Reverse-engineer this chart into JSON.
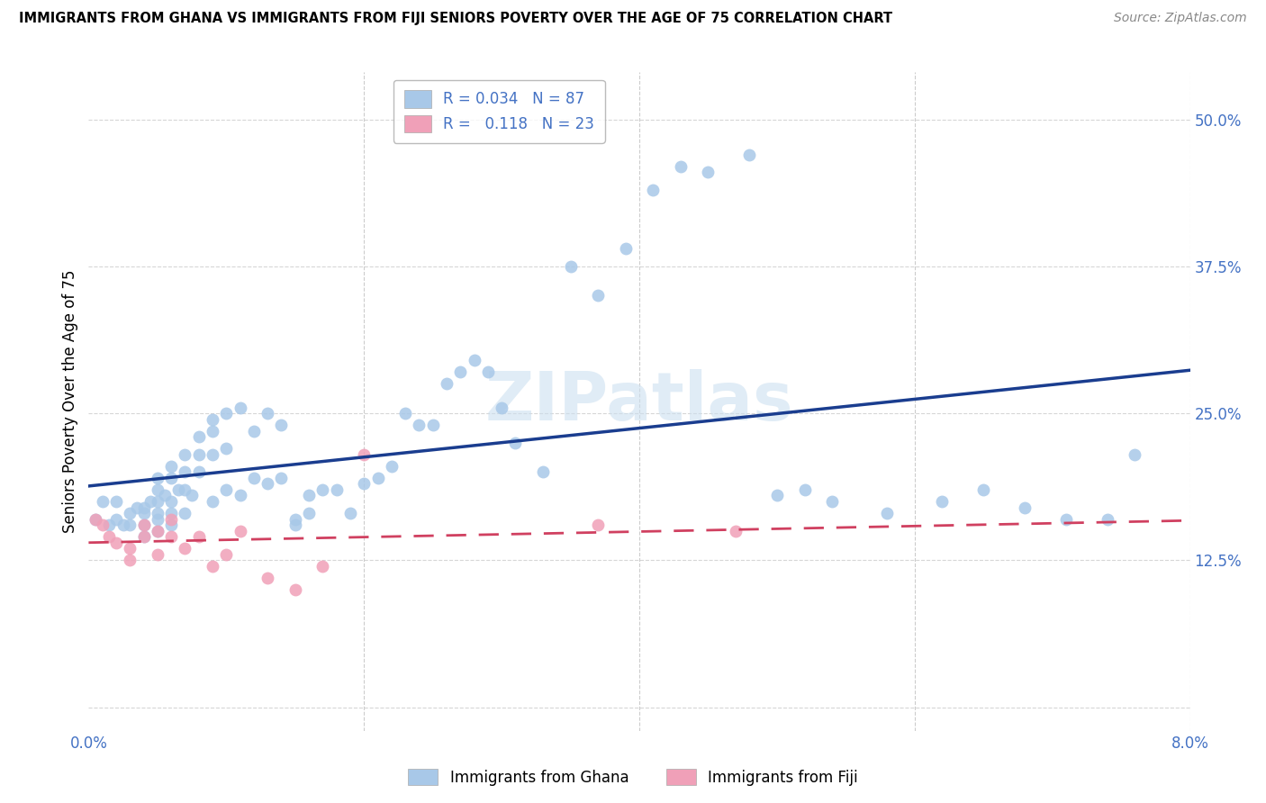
{
  "title": "IMMIGRANTS FROM GHANA VS IMMIGRANTS FROM FIJI SENIORS POVERTY OVER THE AGE OF 75 CORRELATION CHART",
  "source": "Source: ZipAtlas.com",
  "ylabel": "Seniors Poverty Over the Age of 75",
  "xlim": [
    0.0,
    0.08
  ],
  "ylim": [
    -0.02,
    0.54
  ],
  "yticks": [
    0.0,
    0.125,
    0.25,
    0.375,
    0.5
  ],
  "ytick_labels": [
    "",
    "12.5%",
    "25.0%",
    "37.5%",
    "50.0%"
  ],
  "xticks": [
    0.0,
    0.02,
    0.04,
    0.06,
    0.08
  ],
  "xtick_labels": [
    "0.0%",
    "",
    "",
    "",
    "8.0%"
  ],
  "ghana_R": 0.034,
  "ghana_N": 87,
  "fiji_R": 0.118,
  "fiji_N": 23,
  "ghana_color": "#a8c8e8",
  "fiji_color": "#f0a0b8",
  "ghana_line_color": "#1a3d8f",
  "fiji_line_color": "#d04060",
  "watermark": "ZIPatlas",
  "ghana_x": [
    0.0005,
    0.001,
    0.0015,
    0.002,
    0.002,
    0.0025,
    0.003,
    0.003,
    0.0035,
    0.004,
    0.004,
    0.004,
    0.004,
    0.0045,
    0.005,
    0.005,
    0.005,
    0.005,
    0.005,
    0.005,
    0.0055,
    0.006,
    0.006,
    0.006,
    0.006,
    0.006,
    0.0065,
    0.007,
    0.007,
    0.007,
    0.007,
    0.0075,
    0.008,
    0.008,
    0.008,
    0.009,
    0.009,
    0.009,
    0.009,
    0.01,
    0.01,
    0.01,
    0.011,
    0.011,
    0.012,
    0.012,
    0.013,
    0.013,
    0.014,
    0.014,
    0.015,
    0.015,
    0.016,
    0.016,
    0.017,
    0.018,
    0.019,
    0.02,
    0.021,
    0.022,
    0.023,
    0.024,
    0.025,
    0.026,
    0.027,
    0.028,
    0.029,
    0.03,
    0.031,
    0.033,
    0.035,
    0.037,
    0.039,
    0.041,
    0.043,
    0.045,
    0.048,
    0.05,
    0.052,
    0.054,
    0.058,
    0.062,
    0.065,
    0.068,
    0.071,
    0.074,
    0.076
  ],
  "ghana_y": [
    0.16,
    0.175,
    0.155,
    0.175,
    0.16,
    0.155,
    0.165,
    0.155,
    0.17,
    0.165,
    0.17,
    0.155,
    0.145,
    0.175,
    0.175,
    0.195,
    0.185,
    0.165,
    0.16,
    0.15,
    0.18,
    0.205,
    0.195,
    0.175,
    0.165,
    0.155,
    0.185,
    0.215,
    0.2,
    0.185,
    0.165,
    0.18,
    0.23,
    0.215,
    0.2,
    0.245,
    0.235,
    0.215,
    0.175,
    0.25,
    0.22,
    0.185,
    0.255,
    0.18,
    0.235,
    0.195,
    0.25,
    0.19,
    0.24,
    0.195,
    0.16,
    0.155,
    0.18,
    0.165,
    0.185,
    0.185,
    0.165,
    0.19,
    0.195,
    0.205,
    0.25,
    0.24,
    0.24,
    0.275,
    0.285,
    0.295,
    0.285,
    0.255,
    0.225,
    0.2,
    0.375,
    0.35,
    0.39,
    0.44,
    0.46,
    0.455,
    0.47,
    0.18,
    0.185,
    0.175,
    0.165,
    0.175,
    0.185,
    0.17,
    0.16,
    0.16,
    0.215
  ],
  "fiji_x": [
    0.0005,
    0.001,
    0.0015,
    0.002,
    0.003,
    0.003,
    0.004,
    0.004,
    0.005,
    0.005,
    0.006,
    0.006,
    0.007,
    0.008,
    0.009,
    0.01,
    0.011,
    0.013,
    0.015,
    0.017,
    0.02,
    0.037,
    0.047
  ],
  "fiji_y": [
    0.16,
    0.155,
    0.145,
    0.14,
    0.135,
    0.125,
    0.155,
    0.145,
    0.15,
    0.13,
    0.16,
    0.145,
    0.135,
    0.145,
    0.12,
    0.13,
    0.15,
    0.11,
    0.1,
    0.12,
    0.215,
    0.155,
    0.15
  ]
}
